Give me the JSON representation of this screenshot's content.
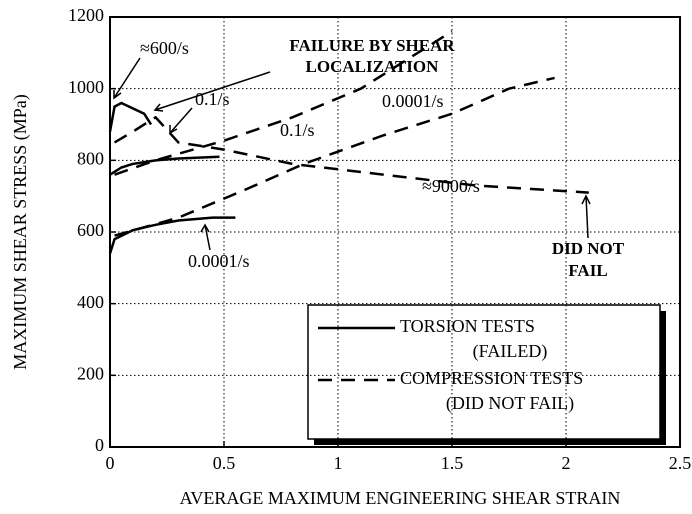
{
  "chart_data": {
    "type": "line",
    "x_label": "AVERAGE MAXIMUM ENGINEERING SHEAR STRAIN",
    "y_label": "MAXIMUM SHEAR STRESS (MPa)",
    "xlim": [
      0,
      2.5
    ],
    "xticks": [
      0,
      0.5,
      1,
      1.5,
      2,
      2.5
    ],
    "ylim": [
      0,
      1200
    ],
    "yticks": [
      0,
      200,
      400,
      600,
      800,
      1000,
      1200
    ],
    "grid": true,
    "color": "#000000",
    "series": [
      {
        "test": "torsion",
        "dashed": false,
        "x": [
          0,
          0.02,
          0.1,
          0.2,
          0.3,
          0.45,
          0.55
        ],
        "values": [
          540,
          580,
          605,
          620,
          632,
          640,
          640
        ]
      },
      {
        "test": "torsion",
        "dashed": false,
        "x": [
          0,
          0.05,
          0.1,
          0.2,
          0.3,
          0.48
        ],
        "values": [
          760,
          780,
          790,
          800,
          805,
          810
        ]
      },
      {
        "test": "torsion",
        "dashed": false,
        "x": [
          0,
          0.02,
          0.05,
          0.1,
          0.15,
          0.18
        ],
        "values": [
          880,
          950,
          960,
          945,
          930,
          900
        ]
      },
      {
        "test": "compression",
        "dashed": true,
        "x": [
          0.02,
          0.2,
          0.5,
          0.8,
          1.1,
          1.3,
          1.5
        ],
        "values": [
          760,
          800,
          855,
          920,
          1000,
          1080,
          1160
        ]
      },
      {
        "test": "compression",
        "dashed": true,
        "x": [
          0.02,
          0.3,
          0.6,
          0.85,
          1.2,
          1.5,
          1.75,
          1.95
        ],
        "values": [
          590,
          640,
          720,
          790,
          870,
          930,
          1000,
          1030
        ]
      },
      {
        "test": "compression",
        "dashed": true,
        "x": [
          0.02,
          0.1,
          0.2,
          0.3,
          0.5,
          0.8,
          1.2,
          1.6,
          2.1
        ],
        "values": [
          850,
          880,
          920,
          850,
          830,
          790,
          760,
          730,
          710
        ]
      }
    ],
    "annotations": [
      "≈600/s",
      "FAILURE BY SHEAR",
      "LOCALIZATION",
      "0.1/s",
      "0.1/s",
      "0.0001/s",
      "≈9000/s",
      "0.0001/s",
      "DID NOT",
      "FAIL"
    ],
    "legend": [
      {
        "dashed": false,
        "lines": [
          "TORSION TESTS",
          "(FAILED)"
        ]
      },
      {
        "dashed": true,
        "lines": [
          "COMPRESSION TESTS",
          "(DID NOT FAIL)"
        ]
      }
    ]
  }
}
